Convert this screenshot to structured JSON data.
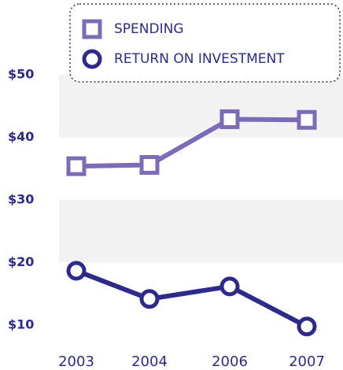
{
  "chart_data": {
    "type": "line",
    "categories": [
      "2003",
      "2004",
      "2006",
      "2007"
    ],
    "series": [
      {
        "name": "SPENDING",
        "color": "#7b6bb8",
        "marker": "square",
        "values": [
          35.4,
          35.6,
          42.9,
          42.8
        ]
      },
      {
        "name": "RETURN ON INVESTMENT",
        "color": "#2e2a8c",
        "marker": "circle",
        "values": [
          18.7,
          14.2,
          16.2,
          9.8
        ]
      }
    ],
    "ylim": [
      7,
      50
    ],
    "yticks": [
      {
        "value": 10,
        "label": "$10"
      },
      {
        "value": 20,
        "label": "$20"
      },
      {
        "value": 30,
        "label": "$30"
      },
      {
        "value": 40,
        "label": "$40"
      },
      {
        "value": 50,
        "label": "$50"
      }
    ],
    "grid": "bands",
    "legend": "top"
  }
}
